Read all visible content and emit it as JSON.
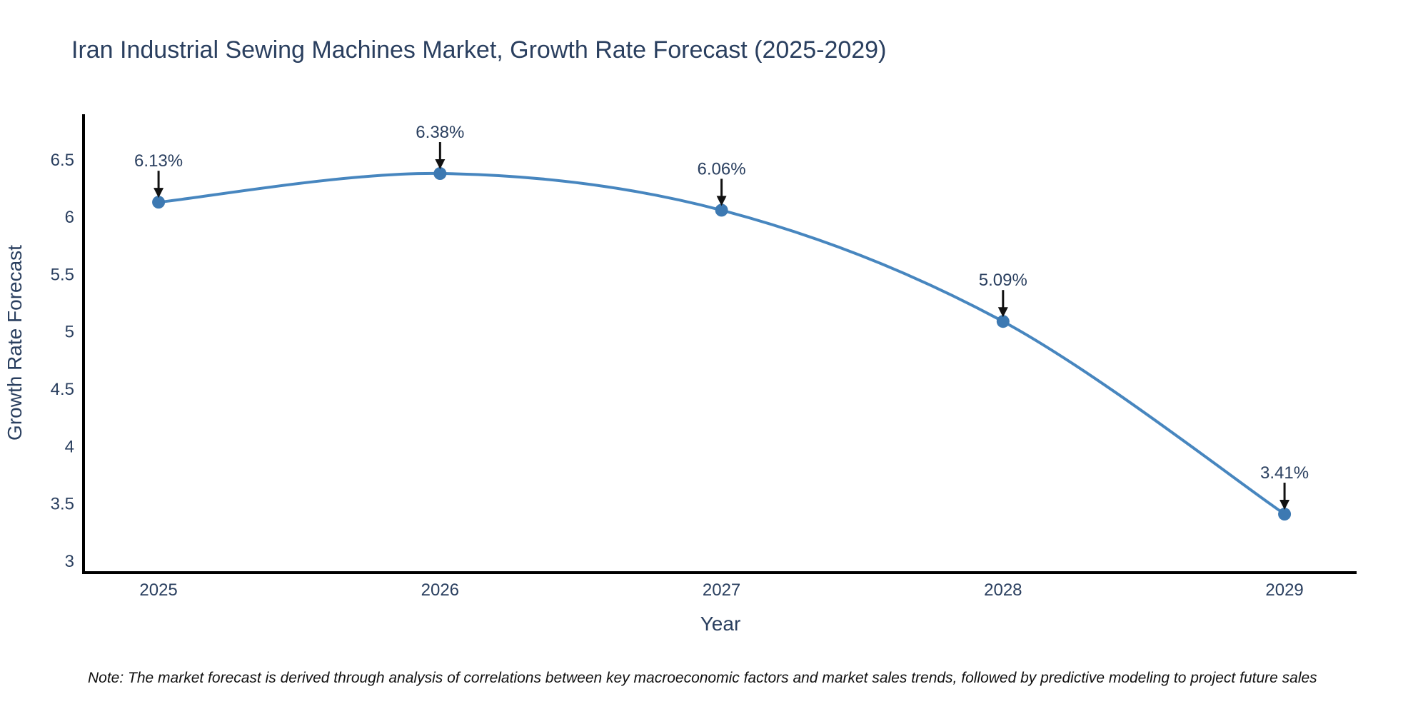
{
  "note": "Note: The market forecast is derived through analysis of correlations between key macroeconomic factors and market sales trends, followed by predictive modeling to project future sales",
  "chart_data": {
    "type": "line",
    "title": "Iran Industrial Sewing Machines Market, Growth Rate Forecast (2025-2029)",
    "xlabel": "Year",
    "ylabel": "Growth Rate Forecast",
    "x": [
      2025,
      2026,
      2027,
      2028,
      2029
    ],
    "xtick_labels": [
      "2025",
      "2026",
      "2027",
      "2028",
      "2029"
    ],
    "series": [
      {
        "name": "Growth Rate Forecast",
        "values": [
          6.13,
          6.38,
          6.06,
          5.09,
          3.41
        ]
      }
    ],
    "values": [
      6.13,
      6.38,
      6.06,
      5.09,
      3.41
    ],
    "point_labels": [
      "6.13%",
      "6.38%",
      "6.06%",
      "5.09%",
      "3.41%"
    ],
    "yticks": [
      3,
      3.5,
      4,
      4.5,
      5,
      5.5,
      6,
      6.5
    ],
    "ytick_labels": [
      "3",
      "3.5",
      "4",
      "4.5",
      "5",
      "5.5",
      "6",
      "6.5"
    ],
    "xlim": [
      2024.736,
      2029.256
    ],
    "ylim": [
      2.912,
      6.897
    ],
    "grid": false,
    "legend": "none",
    "curve": "spline",
    "colors": {
      "line": "#4786bf",
      "marker": "#3d79b2",
      "axis": "#000000",
      "text": "#2a3f5f",
      "annotation_text": "#2a3f5f",
      "arrow": "#111111",
      "note_text": "#111111",
      "background": "#ffffff"
    }
  }
}
